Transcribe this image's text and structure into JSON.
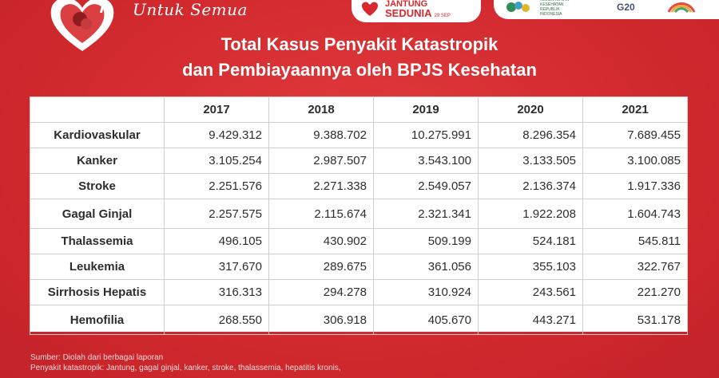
{
  "header": {
    "tagline": "Untuk Semua",
    "event_line1": "JANTUNG",
    "event_line2": "SEDUNIA",
    "event_date": "29 SEP",
    "logo_small_text": "KEMENTERIAN KESEHATAN REPUBLIK INDONESIA",
    "logo_g20": "G20"
  },
  "title": {
    "line1": "Total Kasus Penyakit Katastropik",
    "line2": "dan Pembiayaannya oleh BPJS Kesehatan"
  },
  "table": {
    "columns": [
      "",
      "2017",
      "2018",
      "2019",
      "2020",
      "2021"
    ],
    "rows": [
      {
        "name": "Kardiovaskular",
        "values": [
          "9.429.312",
          "9.388.702",
          "10.275.991",
          "8.296.354",
          "7.689.455"
        ]
      },
      {
        "name": "Kanker",
        "values": [
          "3.105.254",
          "2.987.507",
          "3.543.100",
          "3.133.505",
          "3.100.085"
        ]
      },
      {
        "name": "Stroke",
        "values": [
          "2.251.576",
          "2.271.338",
          "2.549.057",
          "2.136.374",
          "1.917.336"
        ]
      },
      {
        "name": "Gagal Ginjal",
        "values": [
          "2.257.575",
          "2.115.674",
          "2.321.341",
          "1.922.208",
          "1.604.743"
        ]
      },
      {
        "name": "Thalassemia",
        "values": [
          "496.105",
          "430.902",
          "509.199",
          "524.181",
          "545.811"
        ]
      },
      {
        "name": "Leukemia",
        "values": [
          "317.670",
          "289.675",
          "361.056",
          "355.103",
          "322.767"
        ]
      },
      {
        "name": "Sirrhosis Hepatis",
        "values": [
          "316.313",
          "294.278",
          "310.924",
          "243.561",
          "221.270"
        ]
      },
      {
        "name": "Hemofilia",
        "values": [
          "268.550",
          "306.918",
          "405.670",
          "443.271",
          "531.178"
        ]
      }
    ]
  },
  "footnote": {
    "line1": "Sumber: Diolah dari berbagai laporan",
    "line2": "Penyakit katastropik: Jantung, gagal ginjal, kanker, stroke, thalassemia, hepatitis kronis,"
  },
  "colors": {
    "background": "#d62a2e",
    "accent": "#ffffff"
  }
}
